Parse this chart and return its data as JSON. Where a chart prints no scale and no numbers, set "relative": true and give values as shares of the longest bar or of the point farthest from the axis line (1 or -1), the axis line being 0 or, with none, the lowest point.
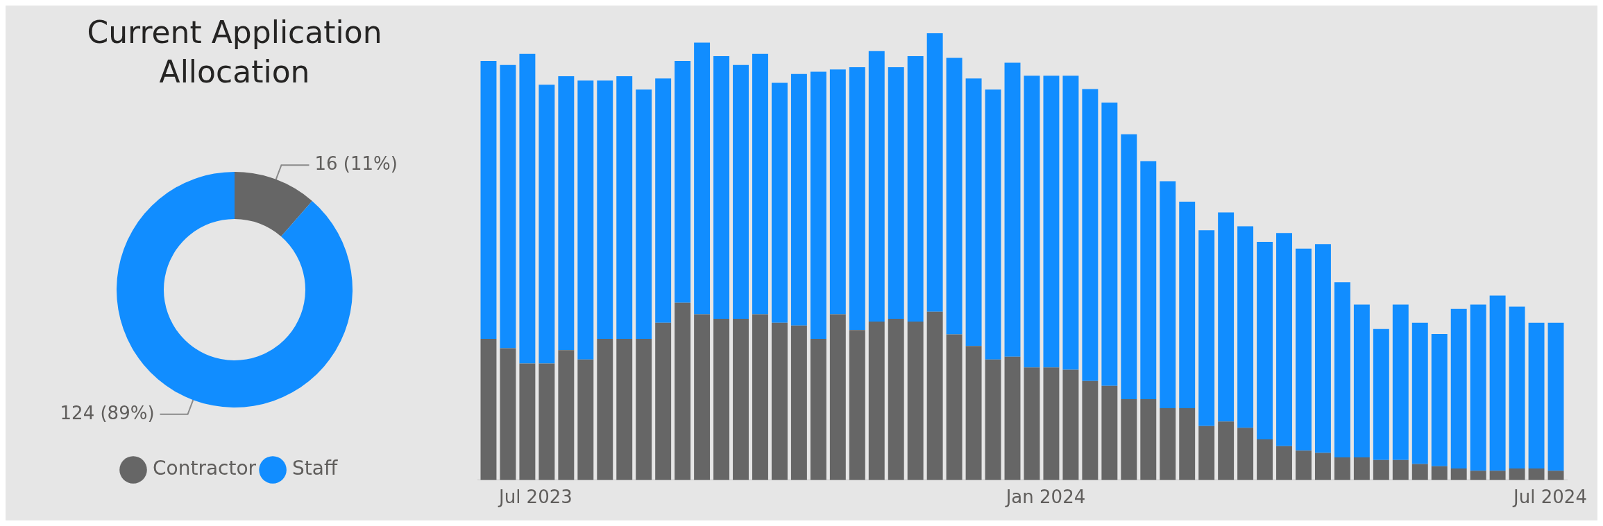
{
  "chart_data": [
    {
      "type": "donut",
      "title": "Current Application Allocation",
      "categories": [
        "Contractor",
        "Staff"
      ],
      "values": [
        16,
        124
      ],
      "colors": [
        "#666666",
        "#118dff"
      ],
      "value_labels": [
        "16 (11%)",
        "124 (89%)"
      ],
      "legend": "bottom left"
    },
    {
      "type": "bar",
      "stacked": true,
      "relative": true,
      "legend": false,
      "x": [
        "2023-06-14",
        "2023-06-21",
        "2023-06-28",
        "2023-07-05",
        "2023-07-12",
        "2023-07-19",
        "2023-07-26",
        "2023-08-02",
        "2023-08-09",
        "2023-08-16",
        "2023-08-23",
        "2023-08-30",
        "2023-09-06",
        "2023-09-13",
        "2023-09-20",
        "2023-09-27",
        "2023-10-04",
        "2023-10-11",
        "2023-10-18",
        "2023-10-25",
        "2023-11-01",
        "2023-11-08",
        "2023-11-15",
        "2023-11-22",
        "2023-11-29",
        "2023-12-06",
        "2023-12-13",
        "2023-12-20",
        "2023-12-27",
        "2024-01-03",
        "2024-01-10",
        "2024-01-17",
        "2024-01-24",
        "2024-01-31",
        "2024-02-07",
        "2024-02-14",
        "2024-02-21",
        "2024-02-28",
        "2024-03-06",
        "2024-03-13",
        "2024-03-20",
        "2024-03-27",
        "2024-04-03",
        "2024-04-10",
        "2024-04-17",
        "2024-04-24",
        "2024-05-01",
        "2024-05-08",
        "2024-05-15",
        "2024-05-22",
        "2024-05-29",
        "2024-06-05",
        "2024-06-12",
        "2024-06-19",
        "2024-06-26",
        "2024-07-03"
      ],
      "xlim": [
        "2023-06-10",
        "2024-07-07"
      ],
      "xticks": [
        {
          "value": "2023-07-01",
          "label": "Jul 2023"
        },
        {
          "value": "2024-01-01",
          "label": "Jan 2024"
        },
        {
          "value": "2024-07-01",
          "label": "Jul 2024"
        }
      ],
      "series": [
        {
          "color": "#666666",
          "values": [
            0.316,
            0.295,
            0.261,
            0.261,
            0.291,
            0.27,
            0.316,
            0.316,
            0.316,
            0.352,
            0.397,
            0.371,
            0.361,
            0.361,
            0.371,
            0.352,
            0.346,
            0.316,
            0.371,
            0.336,
            0.355,
            0.361,
            0.355,
            0.377,
            0.326,
            0.3,
            0.27,
            0.276,
            0.252,
            0.252,
            0.247,
            0.222,
            0.211,
            0.181,
            0.181,
            0.161,
            0.161,
            0.121,
            0.131,
            0.117,
            0.091,
            0.076,
            0.066,
            0.061,
            0.051,
            0.051,
            0.045,
            0.045,
            0.036,
            0.031,
            0.026,
            0.021,
            0.021,
            0.026,
            0.026,
            0.021
          ]
        },
        {
          "color": "#118dff",
          "values": [
            0.622,
            0.634,
            0.693,
            0.624,
            0.613,
            0.624,
            0.578,
            0.588,
            0.558,
            0.547,
            0.541,
            0.608,
            0.588,
            0.568,
            0.583,
            0.537,
            0.563,
            0.598,
            0.548,
            0.588,
            0.605,
            0.563,
            0.594,
            0.623,
            0.619,
            0.599,
            0.604,
            0.658,
            0.653,
            0.653,
            0.658,
            0.653,
            0.634,
            0.593,
            0.533,
            0.508,
            0.462,
            0.438,
            0.468,
            0.451,
            0.442,
            0.477,
            0.452,
            0.467,
            0.392,
            0.342,
            0.293,
            0.348,
            0.316,
            0.296,
            0.357,
            0.372,
            0.392,
            0.362,
            0.326,
            0.331
          ]
        }
      ]
    }
  ]
}
